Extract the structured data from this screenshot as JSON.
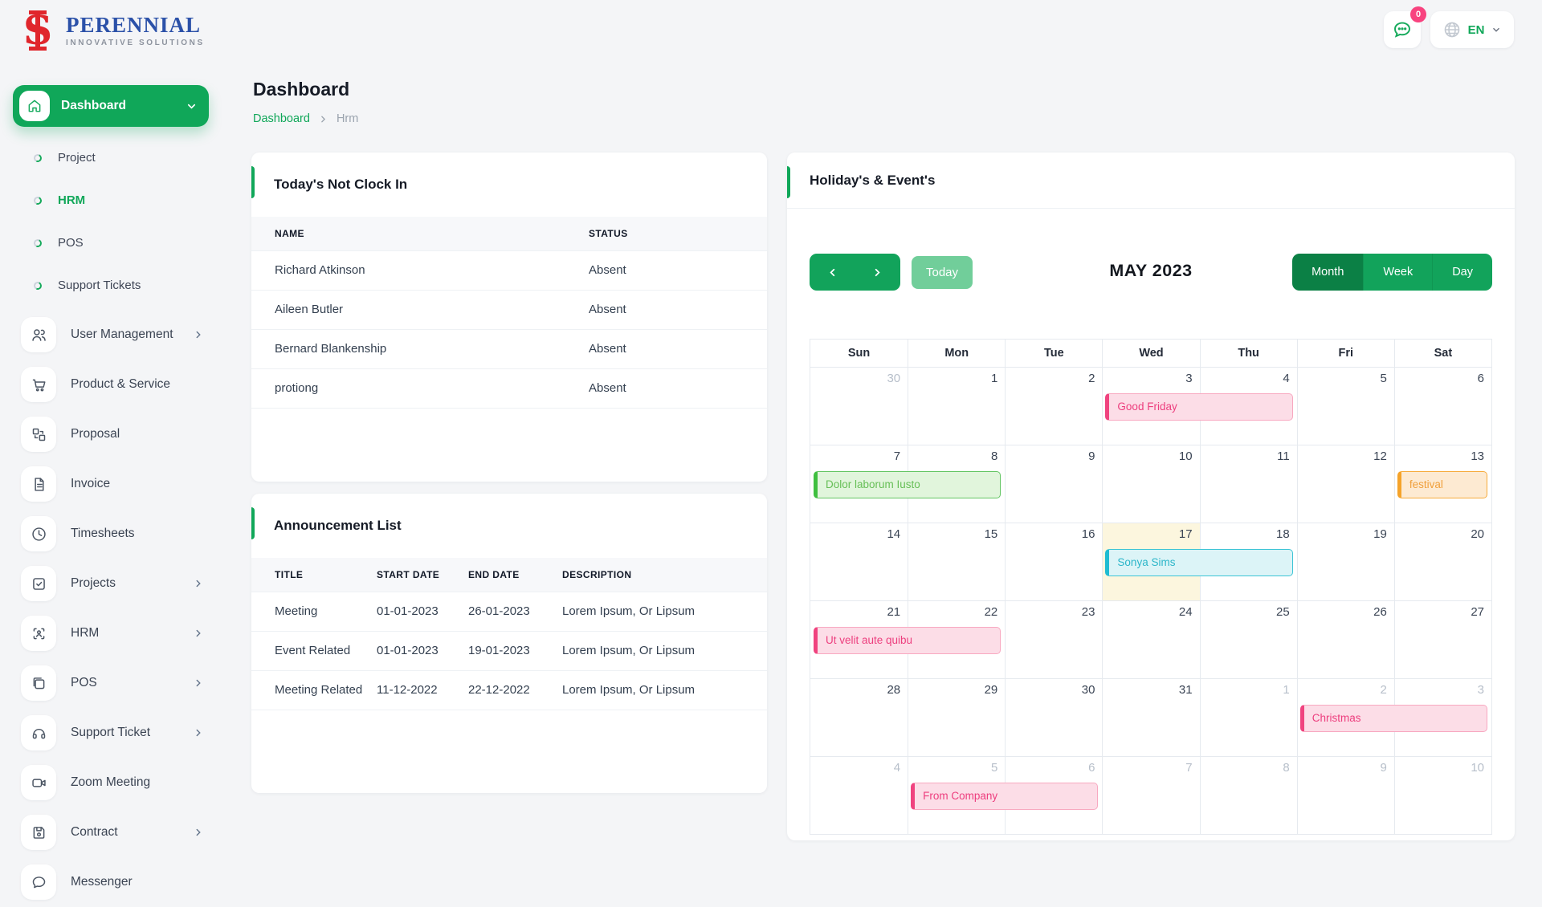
{
  "brand": {
    "name": "PERENNIAL",
    "tagline": "INNOVATIVE SOLUTIONS"
  },
  "topbar": {
    "chat_badge": "0",
    "language": "EN"
  },
  "sidebar": {
    "dashboard_label": "Dashboard",
    "sub_items": [
      {
        "label": "Project",
        "active": false
      },
      {
        "label": "HRM",
        "active": true
      },
      {
        "label": "POS",
        "active": false
      },
      {
        "label": "Support Tickets",
        "active": false
      }
    ],
    "items": [
      {
        "label": "User Management",
        "icon": "users-icon",
        "chevron": true
      },
      {
        "label": "Product & Service",
        "icon": "cart-icon",
        "chevron": false
      },
      {
        "label": "Proposal",
        "icon": "proposal-icon",
        "chevron": false
      },
      {
        "label": "Invoice",
        "icon": "invoice-icon",
        "chevron": false
      },
      {
        "label": "Timesheets",
        "icon": "clock-icon",
        "chevron": false
      },
      {
        "label": "Projects",
        "icon": "check-square-icon",
        "chevron": true
      },
      {
        "label": "HRM",
        "icon": "scan-icon",
        "chevron": true
      },
      {
        "label": "POS",
        "icon": "device-icon",
        "chevron": true
      },
      {
        "label": "Support Ticket",
        "icon": "headset-icon",
        "chevron": true
      },
      {
        "label": "Zoom Meeting",
        "icon": "video-icon",
        "chevron": false
      },
      {
        "label": "Contract",
        "icon": "save-icon",
        "chevron": true
      },
      {
        "label": "Messenger",
        "icon": "chat-icon",
        "chevron": false
      }
    ]
  },
  "page": {
    "title": "Dashboard",
    "breadcrumb_root": "Dashboard",
    "breadcrumb_current": "Hrm"
  },
  "clockin": {
    "title": "Today's Not Clock In",
    "columns": {
      "name": "NAME",
      "status": "STATUS"
    },
    "rows": [
      {
        "name": "Richard Atkinson",
        "status": "Absent"
      },
      {
        "name": "Aileen Butler",
        "status": "Absent"
      },
      {
        "name": "Bernard Blankenship",
        "status": "Absent"
      },
      {
        "name": "protiong",
        "status": "Absent"
      }
    ]
  },
  "announcements": {
    "title": "Announcement List",
    "columns": {
      "title": "TITLE",
      "start": "START DATE",
      "end": "END DATE",
      "description": "DESCRIPTION"
    },
    "rows": [
      {
        "title": "Meeting",
        "start": "01-01-2023",
        "end": "26-01-2023",
        "description": "Lorem Ipsum, Or Lipsum"
      },
      {
        "title": "Event Related",
        "start": "01-01-2023",
        "end": "19-01-2023",
        "description": "Lorem Ipsum, Or Lipsum"
      },
      {
        "title": "Meeting Related",
        "start": "11-12-2022",
        "end": "22-12-2022",
        "description": "Lorem Ipsum, Or Lipsum"
      }
    ]
  },
  "calendar": {
    "title": "Holiday's & Event's",
    "toolbar": {
      "today_label": "Today",
      "month_title": "MAY 2023",
      "views": [
        "Month",
        "Week",
        "Day"
      ],
      "active_view": "Month"
    },
    "day_headers": [
      "Sun",
      "Mon",
      "Tue",
      "Wed",
      "Thu",
      "Fri",
      "Sat"
    ],
    "weeks": [
      [
        {
          "d": 30,
          "muted": true
        },
        {
          "d": 1
        },
        {
          "d": 2
        },
        {
          "d": 3
        },
        {
          "d": 4
        },
        {
          "d": 5
        },
        {
          "d": 6
        }
      ],
      [
        {
          "d": 7
        },
        {
          "d": 8
        },
        {
          "d": 9
        },
        {
          "d": 10
        },
        {
          "d": 11
        },
        {
          "d": 12
        },
        {
          "d": 13
        }
      ],
      [
        {
          "d": 14
        },
        {
          "d": 15
        },
        {
          "d": 16
        },
        {
          "d": 17,
          "today": true
        },
        {
          "d": 18
        },
        {
          "d": 19
        },
        {
          "d": 20
        }
      ],
      [
        {
          "d": 21
        },
        {
          "d": 22
        },
        {
          "d": 23
        },
        {
          "d": 24
        },
        {
          "d": 25
        },
        {
          "d": 26
        },
        {
          "d": 27
        }
      ],
      [
        {
          "d": 28
        },
        {
          "d": 29
        },
        {
          "d": 30
        },
        {
          "d": 31
        },
        {
          "d": 1,
          "muted": true
        },
        {
          "d": 2,
          "muted": true
        },
        {
          "d": 3,
          "muted": true
        }
      ],
      [
        {
          "d": 4,
          "muted": true
        },
        {
          "d": 5,
          "muted": true
        },
        {
          "d": 6,
          "muted": true
        },
        {
          "d": 7,
          "muted": true
        },
        {
          "d": 8,
          "muted": true
        },
        {
          "d": 9,
          "muted": true
        },
        {
          "d": 10,
          "muted": true
        }
      ]
    ],
    "events": [
      {
        "label": "Good Friday",
        "week": 0,
        "col": 3,
        "span": 2,
        "color": "pink"
      },
      {
        "label": "Dolor laborum Iusto",
        "week": 1,
        "col": 0,
        "span": 2,
        "color": "green"
      },
      {
        "label": "festival",
        "week": 1,
        "col": 6,
        "span": 1,
        "color": "orange"
      },
      {
        "label": "Sonya Sims",
        "week": 2,
        "col": 3,
        "span": 2,
        "color": "cyan"
      },
      {
        "label": "Ut velit aute quibu",
        "week": 3,
        "col": 0,
        "span": 2,
        "color": "pink"
      },
      {
        "label": "Christmas",
        "week": 4,
        "col": 5,
        "span": 2,
        "color": "pink"
      },
      {
        "label": "From Company",
        "week": 5,
        "col": 1,
        "span": 2,
        "color": "pink"
      }
    ],
    "colors": {
      "accent_green": "#10a759",
      "active_view_green": "#0b8045",
      "today_button_green": "#71ce9a",
      "today_cell_yellow": "#fcf6de",
      "event_pink": "#f0437f",
      "event_green": "#3fbf3f",
      "event_orange": "#f5a32a",
      "event_cyan": "#1fbcd2"
    }
  }
}
